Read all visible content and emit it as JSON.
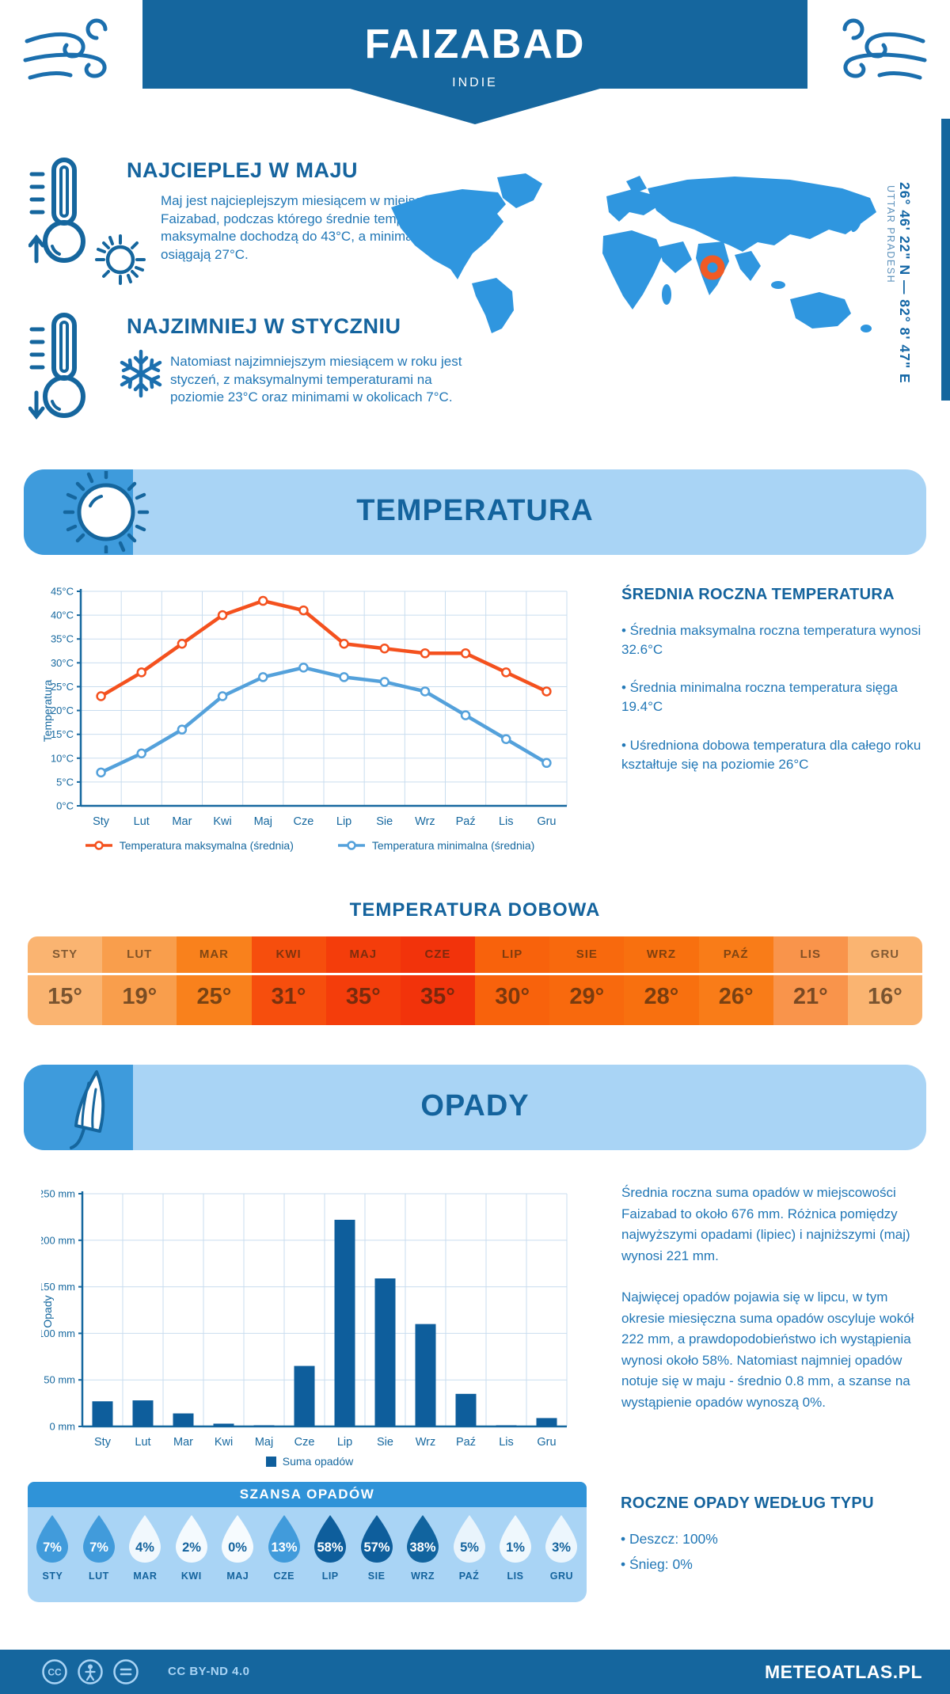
{
  "header": {
    "city": "FAIZABAD",
    "country": "INDIE"
  },
  "location": {
    "coordinates": "26° 46' 22\" N — 82° 8' 47\" E",
    "region": "UTTAR PRADESH"
  },
  "highlights": {
    "warmest": {
      "title": "NAJCIEPLEJ W MAJU",
      "text": "Maj jest najcieplejszym miesiącem w miejscowości Faizabad, podczas którego średnie temperatury maksymalne dochodzą do 43°C, a minimalne osiągają 27°C."
    },
    "coldest": {
      "title": "NAJZIMNIEJ W STYCZNIU",
      "text": "Natomiast najzimniejszym miesiącem w roku jest styczeń, z maksymalnymi temperaturami na poziomie 23°C oraz minimami w okolicach 7°C."
    }
  },
  "temperature": {
    "section_title": "TEMPERATURA",
    "annual": {
      "title": "ŚREDNIA ROCZNA TEMPERATURA",
      "bullets": [
        "• Średnia maksymalna roczna temperatura wynosi 32.6°C",
        "• Średnia minimalna roczna temperatura sięga 19.4°C",
        "• Uśredniona dobowa temperatura dla całego roku kształtuje się na poziomie 26°C"
      ]
    },
    "daily": {
      "title": "TEMPERATURA DOBOWA",
      "months": [
        "STY",
        "LUT",
        "MAR",
        "KWI",
        "MAJ",
        "CZE",
        "LIP",
        "SIE",
        "WRZ",
        "PAŹ",
        "LIS",
        "GRU"
      ],
      "values": [
        "15°",
        "19°",
        "25°",
        "31°",
        "35°",
        "35°",
        "30°",
        "29°",
        "28°",
        "26°",
        "21°",
        "16°"
      ],
      "cell_colors": [
        "#FAB471",
        "#F99E4C",
        "#F9811C",
        "#F64E0D",
        "#F43D0B",
        "#F2330B",
        "#F8620C",
        "#F8690D",
        "#F8700F",
        "#F97C18",
        "#F9944B",
        "#FAB471"
      ]
    }
  },
  "precipitation": {
    "section_title": "OPADY",
    "summary": [
      "Średnia roczna suma opadów w miejscowości Faizabad to około 676 mm. Różnica pomiędzy najwyższymi opadami (lipiec) i najniższymi (maj) wynosi 221 mm.",
      "Najwięcej opadów pojawia się w lipcu, w tym okresie miesięczna suma opadów oscyluje wokół 222 mm, a prawdopodobieństwo ich wystąpienia wynosi około 58%. Natomiast najmniej opadów notuje się w maju - średnio 0.8 mm, a szanse na wystąpienie opadów wynoszą 0%."
    ],
    "chance": {
      "title": "SZANSA OPADÓW",
      "months": [
        "STY",
        "LUT",
        "MAR",
        "KWI",
        "MAJ",
        "CZE",
        "LIP",
        "SIE",
        "WRZ",
        "PAŹ",
        "LIS",
        "GRU"
      ],
      "values": [
        "7%",
        "7%",
        "4%",
        "2%",
        "0%",
        "13%",
        "58%",
        "57%",
        "38%",
        "5%",
        "1%",
        "3%"
      ],
      "drop_colors": [
        "#419BDB",
        "#419BDB",
        "#F1F8FD",
        "#F4FAFE",
        "#F6FBFE",
        "#419BDB",
        "#0E5E9C",
        "#0E5E9C",
        "#11649F",
        "#E9F4FC",
        "#EFF8FD",
        "#ECF6FD"
      ],
      "label_colors": [
        "#FFFFFF",
        "#FFFFFF",
        "#14639D",
        "#14639D",
        "#14639D",
        "#FFFFFF",
        "#FFFFFF",
        "#FFFFFF",
        "#FFFFFF",
        "#14639D",
        "#14639D",
        "#14639D"
      ]
    },
    "by_type": {
      "title": "ROCZNE OPADY WEDŁUG TYPU",
      "bullets": [
        "• Deszcz: 100%",
        "• Śnieg: 0%"
      ]
    }
  },
  "chart_data": [
    {
      "type": "line",
      "title": "TEMPERATURA",
      "categories": [
        "Sty",
        "Lut",
        "Mar",
        "Kwi",
        "Maj",
        "Cze",
        "Lip",
        "Sie",
        "Wrz",
        "Paź",
        "Lis",
        "Gru"
      ],
      "series": [
        {
          "name": "Temperatura maksymalna (średnia)",
          "color": "#F4511E",
          "values": [
            23,
            28,
            34,
            40,
            43,
            41,
            34,
            33,
            32,
            32,
            28,
            24
          ]
        },
        {
          "name": "Temperatura minimalna (średnia)",
          "color": "#54A1DB",
          "values": [
            7,
            11,
            16,
            23,
            27,
            29,
            27,
            26,
            24,
            19,
            14,
            9
          ]
        }
      ],
      "xlabel": "",
      "ylabel": "Temperatura",
      "ylim": [
        0,
        45
      ],
      "ytick_step": 5,
      "yunit": "°C",
      "grid": true,
      "legend_position": "bottom"
    },
    {
      "type": "bar",
      "title": "OPADY",
      "categories": [
        "Sty",
        "Lut",
        "Mar",
        "Kwi",
        "Maj",
        "Cze",
        "Lip",
        "Sie",
        "Wrz",
        "Paź",
        "Lis",
        "Gru"
      ],
      "series": [
        {
          "name": "Suma opadów",
          "color": "#0E5E9C",
          "values": [
            27,
            28,
            14,
            3,
            1,
            65,
            222,
            159,
            110,
            35,
            1,
            9
          ]
        }
      ],
      "xlabel": "",
      "ylabel": "Opady",
      "ylim": [
        0,
        250
      ],
      "ytick_step": 50,
      "yunit": " mm",
      "grid": true,
      "legend_position": "bottom"
    }
  ],
  "footer": {
    "license": "CC BY-ND 4.0",
    "site": "METEOATLAS.PL"
  }
}
